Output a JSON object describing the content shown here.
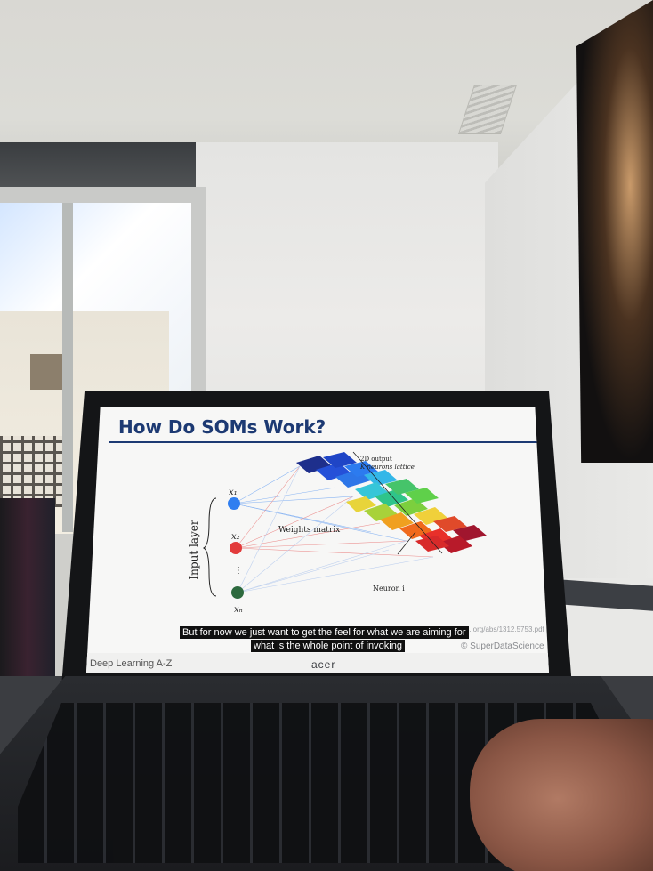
{
  "slide": {
    "title": "How Do SOMs Work?",
    "diagram": {
      "input_axis_label": "Input layer",
      "input_nodes": [
        "x₁",
        "x₂",
        "⋮",
        "xₙ"
      ],
      "weights_label": "Weights matrix",
      "lattice_label_line1": "2D output",
      "lattice_label_line2": "K neurons lattice",
      "neuron_label": "Neuron i"
    },
    "source_url": "...org/abs/1312.5753.pdf",
    "credit": "© SuperDataScience",
    "footer": "Deep Learning A-Z"
  },
  "subtitles": {
    "line1": "But for now we just want to get the feel for what we are aiming for",
    "line2": "what is the whole point of invoking"
  },
  "laptop": {
    "brand": "acer"
  },
  "colors": {
    "title": "#1d3a73",
    "node1": "#2f7ef0",
    "node2": "#e23b3b",
    "node3": "#2d6a3e"
  }
}
